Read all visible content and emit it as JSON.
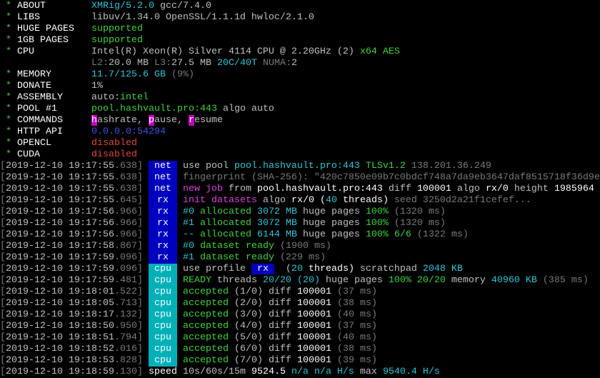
{
  "header": [
    {
      "label": "ABOUT",
      "value": [
        [
          "XMRig/5.2.0",
          "c"
        ],
        [
          " gcc/7.4.0",
          "w"
        ]
      ]
    },
    {
      "label": "LIBS",
      "value": [
        [
          "libuv/1.34.0 OpenSSL/1.1.1d hwloc/2.1.0",
          "w"
        ]
      ]
    },
    {
      "label": "HUGE PAGES",
      "value": [
        [
          "supported",
          "g"
        ]
      ]
    },
    {
      "label": "1GB PAGES",
      "value": [
        [
          "supported",
          "g"
        ]
      ]
    },
    {
      "label": "CPU",
      "value": [
        [
          "Intel(R) Xeon(R) Silver 4114 CPU @ 2.20GHz (2)",
          "w"
        ],
        [
          " x64 AES",
          "g"
        ]
      ]
    },
    {
      "label": "",
      "value": [
        [
          "L2:",
          "d"
        ],
        [
          "20.0 MB ",
          "w"
        ],
        [
          "L3:",
          "d"
        ],
        [
          "27.5 MB ",
          "w"
        ],
        [
          "20C/40T",
          "c"
        ],
        [
          " NUMA:",
          "d"
        ],
        [
          "2",
          "w"
        ]
      ]
    },
    {
      "label": "MEMORY",
      "value": [
        [
          "11.7/125.6 GB",
          "c"
        ],
        [
          " (9%)",
          "d"
        ]
      ]
    },
    {
      "label": "DONATE",
      "value": [
        [
          "1%",
          "w"
        ]
      ]
    },
    {
      "label": "ASSEMBLY",
      "value": [
        [
          "auto:",
          "w"
        ],
        [
          "intel",
          "g"
        ]
      ]
    },
    {
      "label": "POOL #1",
      "value": [
        [
          "pool.hashvault.pro:443",
          "g"
        ],
        [
          " algo auto",
          "w"
        ]
      ]
    },
    {
      "label": "COMMANDS",
      "value": [
        [
          "h",
          "hl"
        ],
        [
          "ashrate, ",
          "w"
        ],
        [
          "p",
          "hl"
        ],
        [
          "ause, ",
          "w"
        ],
        [
          "r",
          "hl"
        ],
        [
          "esume",
          "w"
        ]
      ]
    },
    {
      "label": "HTTP API",
      "value": [
        [
          "0.0.0.0:54294",
          "b"
        ]
      ]
    },
    {
      "label": "OPENCL",
      "value": [
        [
          "disabled",
          "r"
        ]
      ]
    },
    {
      "label": "CUDA",
      "value": [
        [
          "disabled",
          "r"
        ]
      ]
    }
  ],
  "log": [
    {
      "date": "2019-12-10 19:17:55",
      "ms": "638",
      "tag": "net",
      "msg": [
        [
          "use pool ",
          "w"
        ],
        [
          "pool.hashvault.pro:443",
          "c"
        ],
        [
          " TLSv1.2",
          "g"
        ],
        [
          " 138.201.36.249",
          "d"
        ]
      ]
    },
    {
      "date": "2019-12-10 19:17:55",
      "ms": "638",
      "tag": "net",
      "msg": [
        [
          "fingerprint (SHA-256): \"420c7850e09b7c0bdcf748a7da9eb3647daf8515718f36d9e",
          "d"
        ]
      ]
    },
    {
      "date": "2019-12-10 19:17:55",
      "ms": "638",
      "tag": "net",
      "msg": [
        [
          "new job",
          "m"
        ],
        [
          " from ",
          "w"
        ],
        [
          "pool.hashvault.pro:443",
          "W"
        ],
        [
          " diff ",
          "w"
        ],
        [
          "100001",
          "W"
        ],
        [
          " algo ",
          "w"
        ],
        [
          "rx/0",
          "W"
        ],
        [
          " height ",
          "w"
        ],
        [
          "1985964",
          "W"
        ]
      ]
    },
    {
      "date": "2019-12-10 19:17:55",
      "ms": "645",
      "tag": "rx",
      "msg": [
        [
          "init datasets",
          "m"
        ],
        [
          " algo ",
          "w"
        ],
        [
          "rx/0",
          "W"
        ],
        [
          " (",
          "W"
        ],
        [
          "40",
          "c"
        ],
        [
          " threads)",
          "W"
        ],
        [
          " seed 3250d2a21f1cefef...",
          "d"
        ]
      ]
    },
    {
      "date": "2019-12-10 19:17:56",
      "ms": "966",
      "tag": "rx",
      "msg": [
        [
          "#0",
          "c"
        ],
        [
          " allocated ",
          "g"
        ],
        [
          "3072 MB",
          "c"
        ],
        [
          " huge pages ",
          "w"
        ],
        [
          "100%",
          "g"
        ],
        [
          " (1320 ms)",
          "d"
        ]
      ]
    },
    {
      "date": "2019-12-10 19:17:56",
      "ms": "966",
      "tag": "rx",
      "msg": [
        [
          "#1",
          "c"
        ],
        [
          " allocated ",
          "g"
        ],
        [
          "3072 MB",
          "c"
        ],
        [
          " huge pages ",
          "w"
        ],
        [
          "100%",
          "g"
        ],
        [
          " (1320 ms)",
          "d"
        ]
      ]
    },
    {
      "date": "2019-12-10 19:17:56",
      "ms": "966",
      "tag": "rx",
      "msg": [
        [
          "--",
          "c"
        ],
        [
          " allocated ",
          "g"
        ],
        [
          "6144 MB",
          "c"
        ],
        [
          " huge pages ",
          "w"
        ],
        [
          "100% 6/6",
          "g"
        ],
        [
          " (1322 ms)",
          "d"
        ]
      ]
    },
    {
      "date": "2019-12-10 19:17:58",
      "ms": "867",
      "tag": "rx",
      "msg": [
        [
          "#0",
          "c"
        ],
        [
          " dataset ready",
          "g"
        ],
        [
          " (1900 ms)",
          "d"
        ]
      ]
    },
    {
      "date": "2019-12-10 19:17:59",
      "ms": "096",
      "tag": "rx",
      "msg": [
        [
          "#1",
          "c"
        ],
        [
          " dataset ready",
          "g"
        ],
        [
          " (229 ms)",
          "d"
        ]
      ]
    },
    {
      "date": "2019-12-10 19:17:59",
      "ms": "096",
      "tag": "cpu",
      "msg": [
        [
          "use profile ",
          "w"
        ],
        [
          " rx ",
          "inl"
        ],
        [
          "  (",
          "w"
        ],
        [
          "20",
          "c"
        ],
        [
          " threads)",
          "W"
        ],
        [
          " scratchpad ",
          "w"
        ],
        [
          "2048 KB",
          "c"
        ]
      ]
    },
    {
      "date": "2019-12-10 19:17:59",
      "ms": "481",
      "tag": "cpu",
      "msg": [
        [
          "READY",
          "g"
        ],
        [
          " threads ",
          "w"
        ],
        [
          "20/20",
          "c"
        ],
        [
          " (20)",
          "c"
        ],
        [
          " huge pages ",
          "w"
        ],
        [
          "100% 20/20",
          "g"
        ],
        [
          " memory ",
          "w"
        ],
        [
          "40960 KB",
          "c"
        ],
        [
          " (385 ms)",
          "d"
        ]
      ]
    },
    {
      "date": "2019-12-10 19:18:01",
      "ms": "522",
      "tag": "cpu",
      "msg": [
        [
          "accepted",
          "g"
        ],
        [
          " (1/0)",
          "w"
        ],
        [
          " diff ",
          "w"
        ],
        [
          "100001",
          "W"
        ],
        [
          " (37 ms)",
          "d"
        ]
      ]
    },
    {
      "date": "2019-12-10 19:18:05",
      "ms": "713",
      "tag": "cpu",
      "msg": [
        [
          "accepted",
          "g"
        ],
        [
          " (2/0)",
          "w"
        ],
        [
          " diff ",
          "w"
        ],
        [
          "100001",
          "W"
        ],
        [
          " (38 ms)",
          "d"
        ]
      ]
    },
    {
      "date": "2019-12-10 19:18:17",
      "ms": "132",
      "tag": "cpu",
      "msg": [
        [
          "accepted",
          "g"
        ],
        [
          " (3/0)",
          "w"
        ],
        [
          " diff ",
          "w"
        ],
        [
          "100001",
          "W"
        ],
        [
          " (40 ms)",
          "d"
        ]
      ]
    },
    {
      "date": "2019-12-10 19:18:50",
      "ms": "950",
      "tag": "cpu",
      "msg": [
        [
          "accepted",
          "g"
        ],
        [
          " (4/0)",
          "w"
        ],
        [
          " diff ",
          "w"
        ],
        [
          "100001",
          "W"
        ],
        [
          " (37 ms)",
          "d"
        ]
      ]
    },
    {
      "date": "2019-12-10 19:18:51",
      "ms": "794",
      "tag": "cpu",
      "msg": [
        [
          "accepted",
          "g"
        ],
        [
          " (5/0)",
          "w"
        ],
        [
          " diff ",
          "w"
        ],
        [
          "100001",
          "W"
        ],
        [
          " (40 ms)",
          "d"
        ]
      ]
    },
    {
      "date": "2019-12-10 19:18:52",
      "ms": "016",
      "tag": "cpu",
      "msg": [
        [
          "accepted",
          "g"
        ],
        [
          " (6/0)",
          "w"
        ],
        [
          " diff ",
          "w"
        ],
        [
          "100001",
          "W"
        ],
        [
          " (38 ms)",
          "d"
        ]
      ]
    },
    {
      "date": "2019-12-10 19:18:53",
      "ms": "828",
      "tag": "cpu",
      "msg": [
        [
          "accepted",
          "g"
        ],
        [
          " (7/0)",
          "w"
        ],
        [
          " diff ",
          "w"
        ],
        [
          "100001",
          "W"
        ],
        [
          " (39 ms)",
          "d"
        ]
      ]
    },
    {
      "date": "2019-12-10 19:18:59",
      "ms": "130",
      "tag": "",
      "msg": [
        [
          "speed",
          "W"
        ],
        [
          " 10s/60s/15m ",
          "w"
        ],
        [
          "9524.5",
          "W"
        ],
        [
          " n/a n/a H/s",
          "c"
        ],
        [
          " max ",
          "w"
        ],
        [
          "9540.4 H/s",
          "c"
        ]
      ]
    }
  ]
}
